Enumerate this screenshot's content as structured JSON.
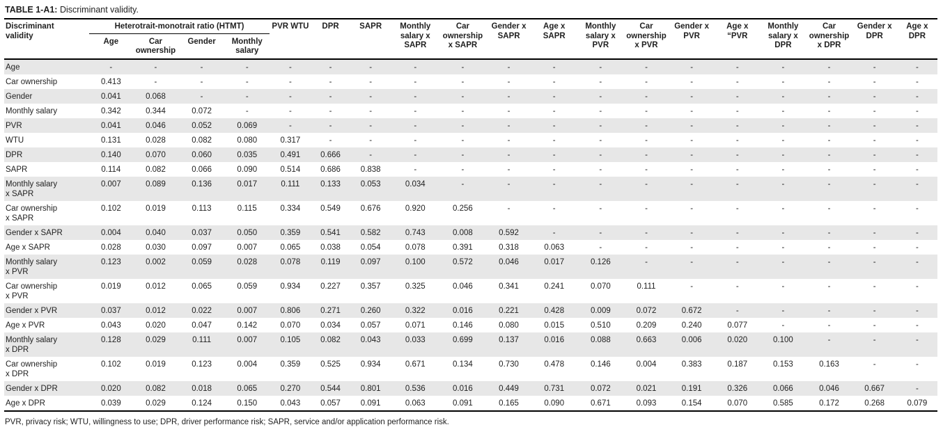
{
  "page": {
    "title_label": "TABLE 1-A1:",
    "title_text": " Discriminant validity.",
    "footnote": "PVR, privacy risk; WTU, willingness to use; DPR, driver performance risk; SAPR, service and/or application performance risk."
  },
  "colors": {
    "stripe": "#e7e7e7",
    "rule": "#000000",
    "text": "#1f1f1f"
  },
  "table": {
    "corner_header": "Discriminant\nvalidity",
    "group_header": "Heterotrait-monotrait ratio (HTMT)",
    "group_sub_headers": [
      "Age",
      "Car\nownership",
      "Gender",
      "Monthly\nsalary"
    ],
    "column_headers": [
      "PVR WTU",
      "DPR",
      "SAPR",
      "Monthly\nsalary x\nSAPR",
      "Car\nownership\nx SAPR",
      "Gender x\nSAPR",
      "Age x SAPR",
      "Monthly\nsalary x\nPVR",
      "Car\nownership\nx PVR",
      "Gender x\nPVR",
      "Age x “PVR",
      "Monthly\nsalary x\nDPR",
      "Car\nownership\nx DPR",
      "Gender x\nDPR",
      "Age x DPR"
    ],
    "rows": [
      {
        "label": "Age",
        "values": [
          "-",
          "-",
          "-",
          "-",
          "-",
          "-",
          "-",
          "-",
          "-",
          "-",
          "-",
          "-",
          "-",
          "-",
          "-",
          "-",
          "-",
          "-",
          "-"
        ]
      },
      {
        "label": "Car ownership",
        "values": [
          "0.413",
          "-",
          "-",
          "-",
          "-",
          "-",
          "-",
          "-",
          "-",
          "-",
          "-",
          "-",
          "-",
          "-",
          "-",
          "-",
          "-",
          "-",
          "-"
        ]
      },
      {
        "label": "Gender",
        "values": [
          "0.041",
          "0.068",
          "-",
          "-",
          "-",
          "-",
          "-",
          "-",
          "-",
          "-",
          "-",
          "-",
          "-",
          "-",
          "-",
          "-",
          "-",
          "-",
          "-"
        ]
      },
      {
        "label": "Monthly salary",
        "values": [
          "0.342",
          "0.344",
          "0.072",
          "-",
          "-",
          "-",
          "-",
          "-",
          "-",
          "-",
          "-",
          "-",
          "-",
          "-",
          "-",
          "-",
          "-",
          "-",
          "-"
        ]
      },
      {
        "label": "PVR",
        "values": [
          "0.041",
          "0.046",
          "0.052",
          "0.069",
          "-",
          "-",
          "-",
          "-",
          "-",
          "-",
          "-",
          "-",
          "-",
          "-",
          "-",
          "-",
          "-",
          "-",
          "-"
        ]
      },
      {
        "label": "WTU",
        "values": [
          "0.131",
          "0.028",
          "0.082",
          "0.080",
          "0.317",
          "-",
          "-",
          "-",
          "-",
          "-",
          "-",
          "-",
          "-",
          "-",
          "-",
          "-",
          "-",
          "-",
          "-"
        ]
      },
      {
        "label": "DPR",
        "values": [
          "0.140",
          "0.070",
          "0.060",
          "0.035",
          "0.491",
          "0.666",
          "-",
          "-",
          "-",
          "-",
          "-",
          "-",
          "-",
          "-",
          "-",
          "-",
          "-",
          "-",
          "-"
        ]
      },
      {
        "label": "SAPR",
        "values": [
          "0.114",
          "0.082",
          "0.066",
          "0.090",
          "0.514",
          "0.686",
          "0.838",
          "-",
          "-",
          "-",
          "-",
          "-",
          "-",
          "-",
          "-",
          "-",
          "-",
          "-",
          "-"
        ]
      },
      {
        "label": "Monthly salary\nx SAPR",
        "values": [
          "0.007",
          "0.089",
          "0.136",
          "0.017",
          "0.111",
          "0.133",
          "0.053",
          "0.034",
          "-",
          "-",
          "-",
          "-",
          "-",
          "-",
          "-",
          "-",
          "-",
          "-",
          "-"
        ]
      },
      {
        "label": "Car ownership\nx SAPR",
        "values": [
          "0.102",
          "0.019",
          "0.113",
          "0.115",
          "0.334",
          "0.549",
          "0.676",
          "0.920",
          "0.256",
          "-",
          "-",
          "-",
          "-",
          "-",
          "-",
          "-",
          "-",
          "-",
          "-"
        ]
      },
      {
        "label": "Gender x SAPR",
        "values": [
          "0.004",
          "0.040",
          "0.037",
          "0.050",
          "0.359",
          "0.541",
          "0.582",
          "0.743",
          "0.008",
          "0.592",
          "-",
          "-",
          "-",
          "-",
          "-",
          "-",
          "-",
          "-",
          "-"
        ]
      },
      {
        "label": "Age x SAPR",
        "values": [
          "0.028",
          "0.030",
          "0.097",
          "0.007",
          "0.065",
          "0.038",
          "0.054",
          "0.078",
          "0.391",
          "0.318",
          "0.063",
          "-",
          "-",
          "-",
          "-",
          "-",
          "-",
          "-",
          "-"
        ]
      },
      {
        "label": "Monthly salary\nx PVR",
        "values": [
          "0.123",
          "0.002",
          "0.059",
          "0.028",
          "0.078",
          "0.119",
          "0.097",
          "0.100",
          "0.572",
          "0.046",
          "0.017",
          "0.126",
          "-",
          "-",
          "-",
          "-",
          "-",
          "-",
          "-"
        ]
      },
      {
        "label": "Car ownership\nx PVR",
        "values": [
          "0.019",
          "0.012",
          "0.065",
          "0.059",
          "0.934",
          "0.227",
          "0.357",
          "0.325",
          "0.046",
          "0.341",
          "0.241",
          "0.070",
          "0.111",
          "-",
          "-",
          "-",
          "-",
          "-",
          "-"
        ]
      },
      {
        "label": "Gender x PVR",
        "values": [
          "0.037",
          "0.012",
          "0.022",
          "0.007",
          "0.806",
          "0.271",
          "0.260",
          "0.322",
          "0.016",
          "0.221",
          "0.428",
          "0.009",
          "0.072",
          "0.672",
          "-",
          "-",
          "-",
          "-",
          "-"
        ]
      },
      {
        "label": "Age x PVR",
        "values": [
          "0.043",
          "0.020",
          "0.047",
          "0.142",
          "0.070",
          "0.034",
          "0.057",
          "0.071",
          "0.146",
          "0.080",
          "0.015",
          "0.510",
          "0.209",
          "0.240",
          "0.077",
          "-",
          "-",
          "-",
          "-"
        ]
      },
      {
        "label": "Monthly salary\nx DPR",
        "values": [
          "0.128",
          "0.029",
          "0.111",
          "0.007",
          "0.105",
          "0.082",
          "0.043",
          "0.033",
          "0.699",
          "0.137",
          "0.016",
          "0.088",
          "0.663",
          "0.006",
          "0.020",
          "0.100",
          "-",
          "-",
          "-"
        ]
      },
      {
        "label": "Car ownership\nx DPR",
        "values": [
          "0.102",
          "0.019",
          "0.123",
          "0.004",
          "0.359",
          "0.525",
          "0.934",
          "0.671",
          "0.134",
          "0.730",
          "0.478",
          "0.146",
          "0.004",
          "0.383",
          "0.187",
          "0.153",
          "0.163",
          "-",
          "-"
        ]
      },
      {
        "label": "Gender x DPR",
        "values": [
          "0.020",
          "0.082",
          "0.018",
          "0.065",
          "0.270",
          "0.544",
          "0.801",
          "0.536",
          "0.016",
          "0.449",
          "0.731",
          "0.072",
          "0.021",
          "0.191",
          "0.326",
          "0.066",
          "0.046",
          "0.667",
          "-"
        ]
      },
      {
        "label": "Age x DPR",
        "values": [
          "0.039",
          "0.029",
          "0.124",
          "0.150",
          "0.043",
          "0.057",
          "0.091",
          "0.063",
          "0.091",
          "0.165",
          "0.090",
          "0.671",
          "0.093",
          "0.154",
          "0.070",
          "0.585",
          "0.172",
          "0.268",
          "0.079"
        ]
      }
    ]
  }
}
